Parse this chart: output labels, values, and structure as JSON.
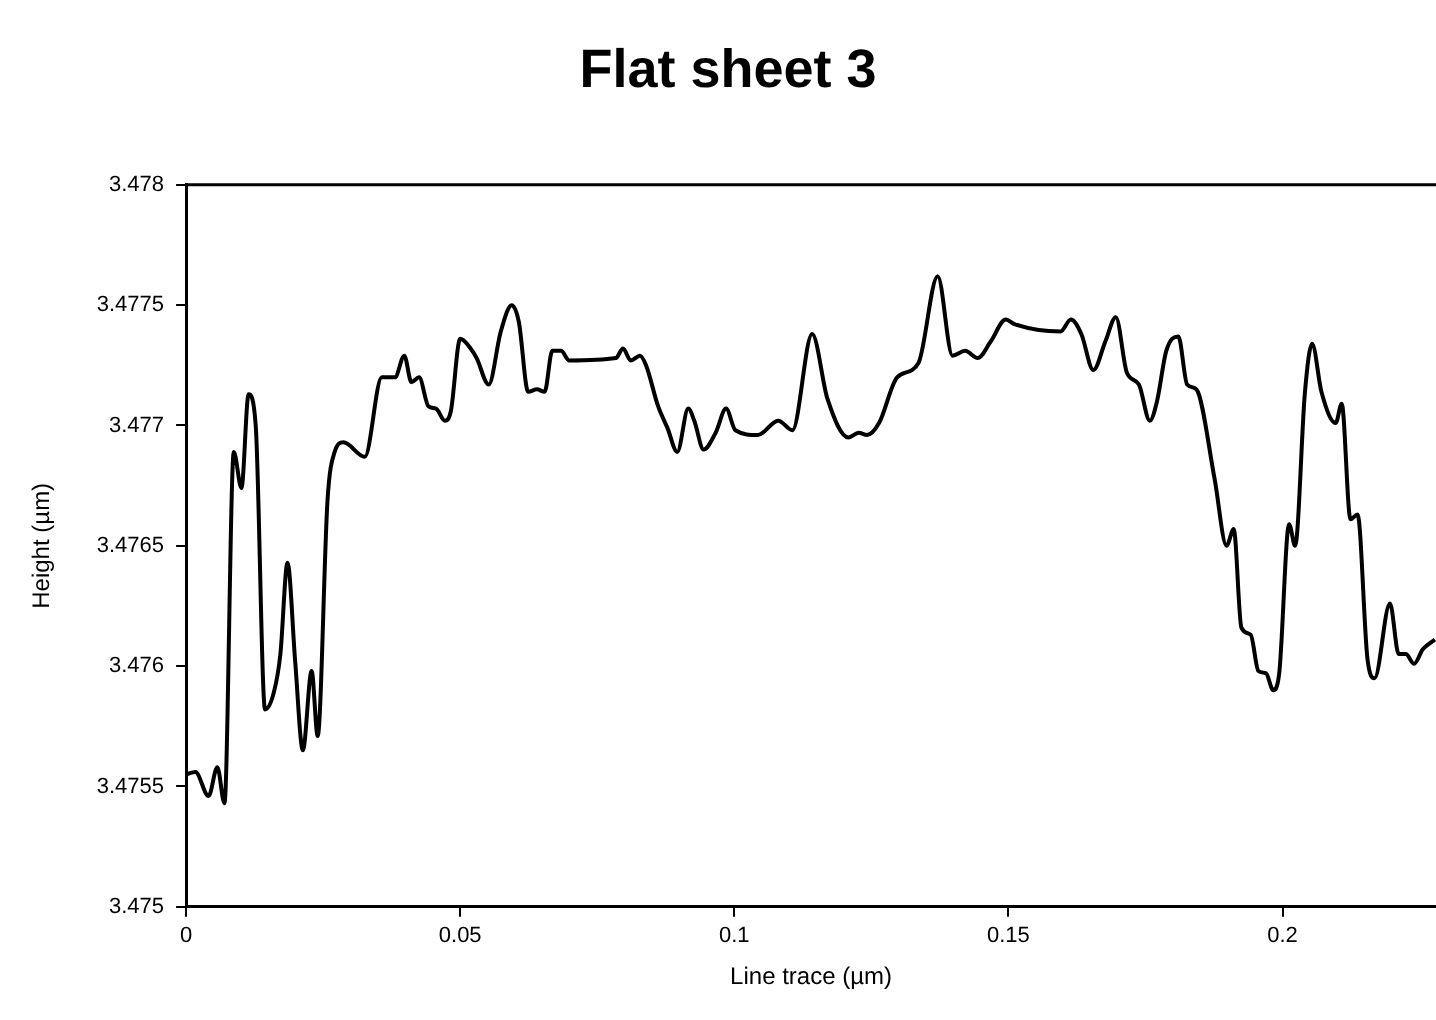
{
  "chart_data": {
    "type": "line",
    "title": "Flat sheet 3",
    "xlabel": "Line trace (µm)",
    "ylabel": "Height (µm)",
    "x": [
      0,
      0.0017,
      0.0041,
      0.0057,
      0.007,
      0.0087,
      0.0101,
      0.0114,
      0.0127,
      0.0144,
      0.016,
      0.0172,
      0.0185,
      0.0199,
      0.0213,
      0.0229,
      0.024,
      0.0258,
      0.0271,
      0.0287,
      0.0326,
      0.0357,
      0.0381,
      0.0398,
      0.0411,
      0.0425,
      0.0442,
      0.0456,
      0.0472,
      0.0483,
      0.05,
      0.0519,
      0.053,
      0.0552,
      0.0574,
      0.0594,
      0.0607,
      0.0624,
      0.064,
      0.0654,
      0.0668,
      0.0684,
      0.0699,
      0.0784,
      0.0797,
      0.0811,
      0.0828,
      0.0839,
      0.0861,
      0.0878,
      0.0896,
      0.0916,
      0.0927,
      0.0944,
      0.0966,
      0.0985,
      0.1002,
      0.1043,
      0.108,
      0.1106,
      0.1142,
      0.117,
      0.1208,
      0.1227,
      0.1242,
      0.1264,
      0.1297,
      0.1336,
      0.1371,
      0.1398,
      0.1421,
      0.1444,
      0.1468,
      0.1495,
      0.1512,
      0.1595,
      0.1614,
      0.1633,
      0.1655,
      0.1677,
      0.1696,
      0.1716,
      0.1738,
      0.1758,
      0.1771,
      0.1788,
      0.181,
      0.1826,
      0.1843,
      0.1876,
      0.1898,
      0.1911,
      0.1925,
      0.1942,
      0.1956,
      0.197,
      0.1983,
      0.1994,
      0.2012,
      0.2023,
      0.2041,
      0.2054,
      0.2071,
      0.2097,
      0.2108,
      0.2124,
      0.2137,
      0.2155,
      0.2168,
      0.2196,
      0.2212,
      0.2225,
      0.224,
      0.2256,
      0.2278
    ],
    "series": [
      {
        "color": "#000000",
        "values": [
          3.47555,
          3.47556,
          3.47546,
          3.47558,
          3.47543,
          3.47689,
          3.47674,
          3.47713,
          3.477,
          3.47582,
          3.47589,
          3.47605,
          3.47643,
          3.47602,
          3.47565,
          3.47598,
          3.47571,
          3.47669,
          3.47689,
          3.47693,
          3.47687,
          3.4772,
          3.4772,
          3.47729,
          3.47718,
          3.4772,
          3.47708,
          3.47707,
          3.47702,
          3.47706,
          3.47736,
          3.47732,
          3.47728,
          3.47717,
          3.47739,
          3.4775,
          3.47743,
          3.47714,
          3.47715,
          3.47714,
          3.47731,
          3.47731,
          3.47727,
          3.47728,
          3.47732,
          3.47727,
          3.47729,
          3.47725,
          3.47708,
          3.47699,
          3.47689,
          3.47707,
          3.47702,
          3.4769,
          3.47697,
          3.47707,
          3.47698,
          3.47696,
          3.47702,
          3.47698,
          3.47738,
          3.47711,
          3.47695,
          3.47697,
          3.47696,
          3.47701,
          3.4772,
          3.47726,
          3.47762,
          3.47729,
          3.47731,
          3.47728,
          3.47735,
          3.47744,
          3.47742,
          3.47739,
          3.47744,
          3.47738,
          3.47723,
          3.47735,
          3.47745,
          3.47722,
          3.47717,
          3.47702,
          3.4771,
          3.47731,
          3.47737,
          3.47717,
          3.47715,
          3.47678,
          3.4765,
          3.47657,
          3.47616,
          3.47613,
          3.47598,
          3.47597,
          3.4759,
          3.47597,
          3.47659,
          3.4765,
          3.47714,
          3.47734,
          3.47714,
          3.47701,
          3.47709,
          3.47661,
          3.47663,
          3.47603,
          3.47595,
          3.47626,
          3.47605,
          3.47605,
          3.47601,
          3.47607,
          3.47611
        ]
      }
    ],
    "xlim": [
      0,
      0.228
    ],
    "xticks": [
      0,
      0.05,
      0.1,
      0.15,
      0.2
    ],
    "ylim": [
      3.475,
      3.478
    ],
    "yticks": [
      3.475,
      3.4755,
      3.476,
      3.4765,
      3.477,
      3.4775,
      3.478
    ],
    "grid": false,
    "legend": false,
    "marker": "none",
    "line_style": "solid"
  }
}
